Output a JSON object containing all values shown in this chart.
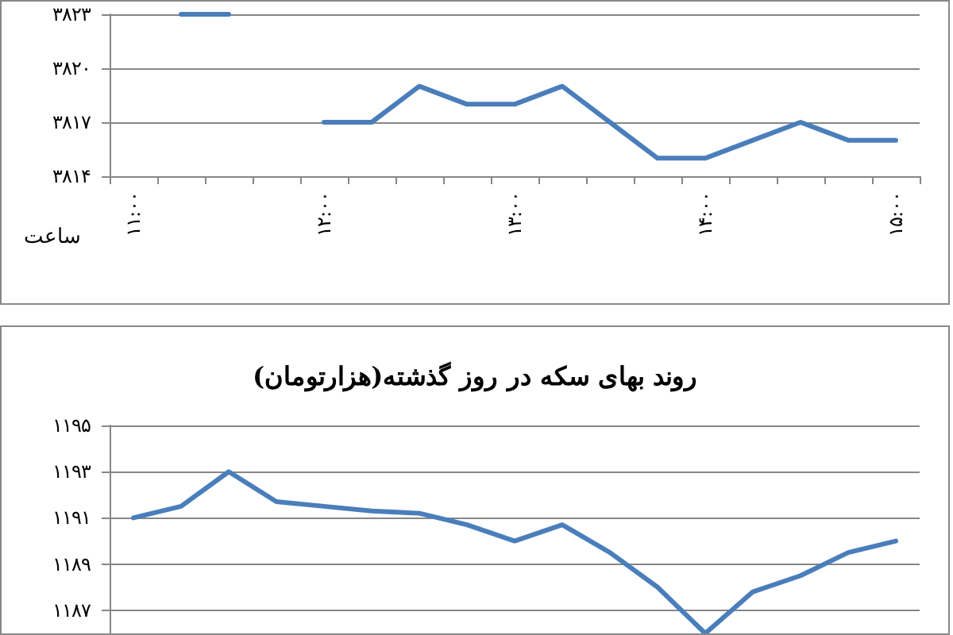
{
  "chart_data": [
    {
      "type": "line",
      "xlabel": "ساعت",
      "categories": [
        "۱۱:۰۰",
        null,
        null,
        null,
        "۱۲:۰۰",
        null,
        null,
        null,
        "۱۳:۰۰",
        null,
        null,
        null,
        "۱۴:۰۰",
        null,
        null,
        null,
        "۱۵:۰۰"
      ],
      "series": [
        {
          "color": "#4a7ebb",
          "values": [
            null,
            3823,
            3823,
            null,
            3817,
            3817,
            3819,
            3818,
            3818,
            3819,
            3817,
            3815,
            3815,
            3816,
            3817,
            3816,
            3816
          ]
        }
      ],
      "ylim": [
        3814,
        3823
      ],
      "yticks": [
        {
          "value": 3814,
          "label": "۳۸۱۴"
        },
        {
          "value": 3817,
          "label": "۳۸۱۷"
        },
        {
          "value": 3820,
          "label": "۳۸۲۰"
        },
        {
          "value": 3823,
          "label": "۳۸۲۳"
        }
      ],
      "grid": "y",
      "marker": "none"
    },
    {
      "type": "line",
      "title": "روند بهای سکه در روز گذشته(هزارتومان)",
      "categories": [
        null,
        null,
        null,
        null,
        null,
        null,
        null,
        null,
        null,
        null,
        null,
        null,
        null,
        null,
        null,
        null,
        null
      ],
      "series": [
        {
          "color": "#4a7ebb",
          "values": [
            1191,
            1191.5,
            1193,
            1191.7,
            1191.5,
            1191.3,
            1191.2,
            1190.7,
            1190,
            1190.7,
            1189.5,
            1188,
            1186,
            1187.8,
            1188.5,
            1189.5,
            1190
          ]
        }
      ],
      "ylim": [
        1186,
        1195
      ],
      "yticks": [
        {
          "value": 1187,
          "label": "۱۱۸۷"
        },
        {
          "value": 1189,
          "label": "۱۱۸۹"
        },
        {
          "value": 1191,
          "label": "۱۱۹۱"
        },
        {
          "value": 1193,
          "label": "۱۱۹۳"
        },
        {
          "value": 1195,
          "label": "۱۱۹۵"
        }
      ],
      "grid": "y",
      "marker": "none",
      "tick_labels": "y"
    }
  ]
}
